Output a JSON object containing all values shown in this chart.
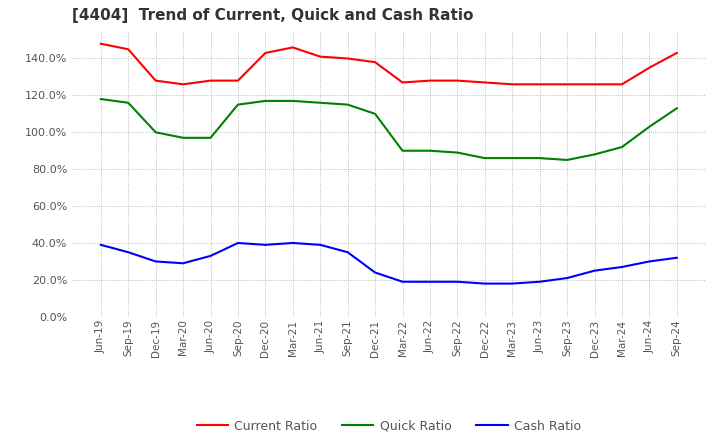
{
  "title": "[4404]  Trend of Current, Quick and Cash Ratio",
  "x_labels": [
    "Jun-19",
    "Sep-19",
    "Dec-19",
    "Mar-20",
    "Jun-20",
    "Sep-20",
    "Dec-20",
    "Mar-21",
    "Jun-21",
    "Sep-21",
    "Dec-21",
    "Mar-22",
    "Jun-22",
    "Sep-22",
    "Dec-22",
    "Mar-23",
    "Jun-23",
    "Sep-23",
    "Dec-23",
    "Mar-24",
    "Jun-24",
    "Sep-24"
  ],
  "current_ratio": [
    148,
    145,
    128,
    126,
    128,
    128,
    143,
    146,
    141,
    140,
    138,
    127,
    128,
    128,
    127,
    126,
    126,
    126,
    126,
    126,
    135,
    143
  ],
  "quick_ratio": [
    118,
    116,
    100,
    97,
    97,
    115,
    117,
    117,
    116,
    115,
    110,
    90,
    90,
    89,
    86,
    86,
    86,
    85,
    88,
    92,
    103,
    113
  ],
  "cash_ratio": [
    39,
    35,
    30,
    29,
    33,
    40,
    39,
    40,
    39,
    35,
    24,
    19,
    19,
    19,
    18,
    18,
    19,
    21,
    25,
    27,
    30,
    32
  ],
  "current_color": "#ff0000",
  "quick_color": "#008000",
  "cash_color": "#0000ff",
  "ylim": [
    0,
    155
  ],
  "yticks": [
    0,
    20,
    40,
    60,
    80,
    100,
    120,
    140
  ],
  "background_color": "#ffffff",
  "grid_color": "#aaaaaa",
  "title_fontsize": 11,
  "legend_labels": [
    "Current Ratio",
    "Quick Ratio",
    "Cash Ratio"
  ]
}
